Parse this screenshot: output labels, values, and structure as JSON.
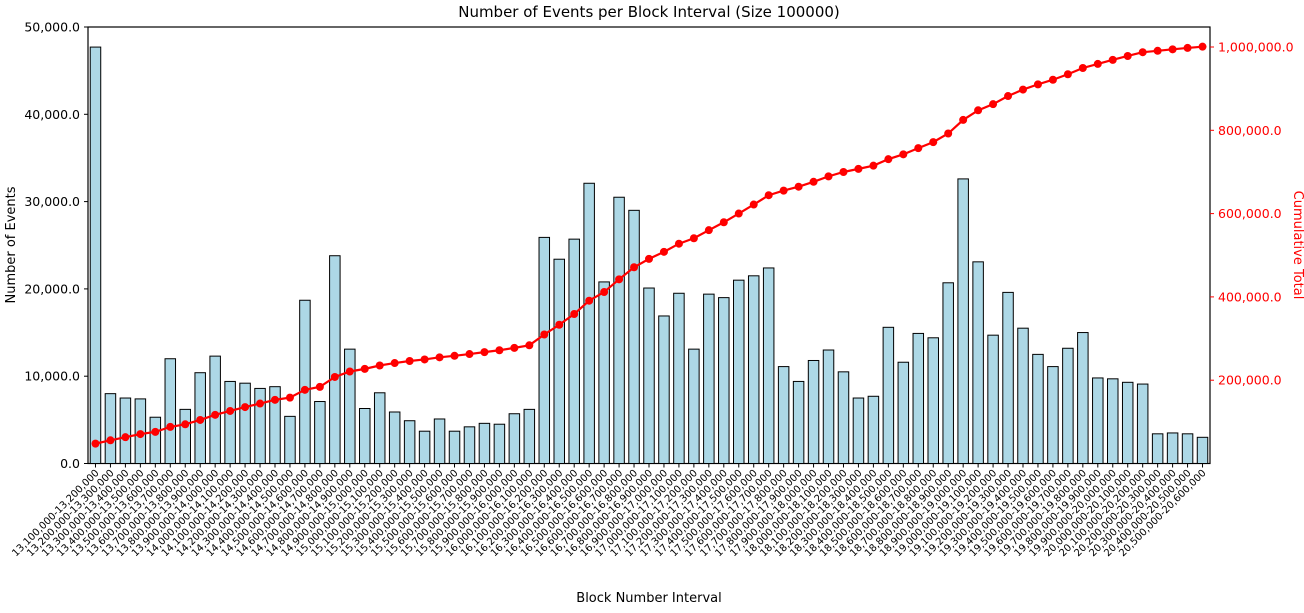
{
  "chart_data": {
    "type": "bar",
    "title": "Number of Events per Block Interval (Size 100000)",
    "xlabel": "Block Number Interval",
    "ylabel_left": "Number of Events",
    "ylabel_right": "Cumulative Total",
    "legend_position": "none",
    "grid": false,
    "bar_color": "#ADD8E6",
    "bar_edge_color": "#000000",
    "line_color": "#FF0000",
    "axis_color": "#000000",
    "right_axis_text_color": "#FF0000",
    "ylim_left": [
      0,
      50000
    ],
    "ylim_right_top_value": 1000000,
    "yticks_left_values": [
      0,
      10000,
      20000,
      30000,
      40000,
      50000
    ],
    "yticks_left_labels": [
      "0.0",
      "10,000.0",
      "20,000.0",
      "30,000.0",
      "40,000.0",
      "50,000.0"
    ],
    "yticks_right_values": [
      200000,
      400000,
      600000,
      800000,
      1000000
    ],
    "yticks_right_labels": [
      "200,000.0",
      "400,000.0",
      "600,000.0",
      "800,000.0",
      "1,000,000.0"
    ],
    "series": [
      {
        "name": "Number of Events",
        "type": "bar",
        "axis": "left"
      },
      {
        "name": "Cumulative Total",
        "type": "line-cumulative",
        "axis": "right"
      }
    ],
    "categories": [
      "13,100,000-13,200,000",
      "13,200,000-13,300,000",
      "13,300,000-13,400,000",
      "13,400,000-13,500,000",
      "13,500,000-13,600,000",
      "13,600,000-13,700,000",
      "13,700,000-13,800,000",
      "13,800,000-13,900,000",
      "13,900,000-14,000,000",
      "14,000,000-14,100,000",
      "14,100,000-14,200,000",
      "14,200,000-14,300,000",
      "14,300,000-14,400,000",
      "14,400,000-14,500,000",
      "14,500,000-14,600,000",
      "14,600,000-14,700,000",
      "14,700,000-14,800,000",
      "14,800,000-14,900,000",
      "14,900,000-15,000,000",
      "15,000,000-15,100,000",
      "15,100,000-15,200,000",
      "15,200,000-15,300,000",
      "15,300,000-15,400,000",
      "15,400,000-15,500,000",
      "15,500,000-15,600,000",
      "15,600,000-15,700,000",
      "15,700,000-15,800,000",
      "15,800,000-15,900,000",
      "15,900,000-16,000,000",
      "16,000,000-16,100,000",
      "16,100,000-16,200,000",
      "16,200,000-16,300,000",
      "16,300,000-16,400,000",
      "16,400,000-16,500,000",
      "16,500,000-16,600,000",
      "16,600,000-16,700,000",
      "16,700,000-16,800,000",
      "16,800,000-16,900,000",
      "16,900,000-17,000,000",
      "17,000,000-17,100,000",
      "17,100,000-17,200,000",
      "17,200,000-17,300,000",
      "17,300,000-17,400,000",
      "17,400,000-17,500,000",
      "17,500,000-17,600,000",
      "17,600,000-17,700,000",
      "17,700,000-17,800,000",
      "17,800,000-17,900,000",
      "17,900,000-18,000,000",
      "18,000,000-18,100,000",
      "18,100,000-18,200,000",
      "18,200,000-18,300,000",
      "18,300,000-18,400,000",
      "18,400,000-18,500,000",
      "18,500,000-18,600,000",
      "18,600,000-18,700,000",
      "18,700,000-18,800,000",
      "18,800,000-18,900,000",
      "18,900,000-19,000,000",
      "19,000,000-19,100,000",
      "19,100,000-19,200,000",
      "19,200,000-19,300,000",
      "19,300,000-19,400,000",
      "19,400,000-19,500,000",
      "19,500,000-19,600,000",
      "19,600,000-19,700,000",
      "19,700,000-19,800,000",
      "19,800,000-19,900,000",
      "19,900,000-20,000,000",
      "20,000,000-20,100,000",
      "20,100,000-20,200,000",
      "20,200,000-20,300,000",
      "20,300,000-20,400,000",
      "20,400,000-20,500,000",
      "20,500,000-20,600,000"
    ],
    "values": [
      47700,
      8000,
      7500,
      7400,
      5300,
      12000,
      6200,
      10400,
      12300,
      9400,
      9200,
      8600,
      8800,
      5400,
      18700,
      7100,
      23800,
      13100,
      6300,
      8100,
      5900,
      4900,
      3700,
      5100,
      3700,
      4200,
      4600,
      4500,
      5700,
      6200,
      25900,
      23400,
      25700,
      32100,
      20800,
      30500,
      29000,
      20100,
      16900,
      19500,
      13100,
      19400,
      19000,
      21000,
      21500,
      22400,
      11100,
      9400,
      11800,
      13000,
      10500,
      7500,
      7700,
      15600,
      11600,
      14900,
      14400,
      20700,
      32600,
      23100,
      14700,
      19600,
      15500,
      12500,
      11100,
      13200,
      15000,
      9800,
      9700,
      9300,
      9100,
      3400,
      3500,
      3400,
      3000
    ]
  }
}
